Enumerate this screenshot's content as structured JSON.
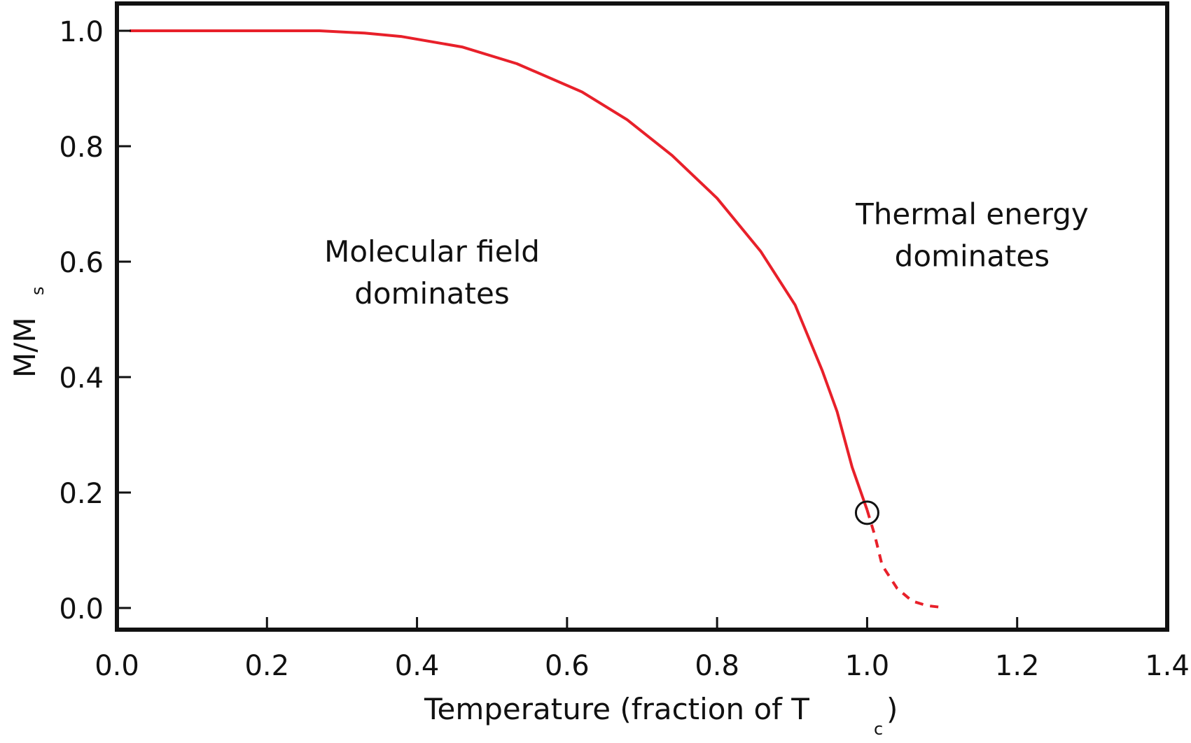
{
  "chart_data": {
    "type": "line",
    "title": "",
    "xlabel": "Temperature (fraction of T",
    "xlabel_sub": "c",
    "xlabel_close": ")",
    "ylabel": "M/M",
    "ylabel_sub": "s",
    "xlim": [
      0.0,
      1.4
    ],
    "ylim": [
      0.0,
      1.0
    ],
    "xticks": [
      "0.0",
      "0.2",
      "0.4",
      "0.6",
      "0.8",
      "1.0",
      "1.2",
      "1.4"
    ],
    "yticks": [
      "0.0",
      "0.2",
      "0.4",
      "0.6",
      "0.8",
      "1.0"
    ],
    "grid": false,
    "series": [
      {
        "style": "solid",
        "color": "#e8202a",
        "x": [
          0.017,
          0.137,
          0.27,
          0.33,
          0.38,
          0.46,
          0.533,
          0.62,
          0.68,
          0.74,
          0.8,
          0.858,
          0.904,
          0.94,
          0.96,
          0.98,
          1.0
        ],
        "y": [
          1.0,
          1.0,
          1.0,
          0.996,
          0.99,
          0.972,
          0.943,
          0.894,
          0.846,
          0.784,
          0.71,
          0.618,
          0.525,
          0.412,
          0.34,
          0.244,
          0.17
        ]
      },
      {
        "style": "dashed",
        "color": "#e8202a",
        "x": [
          1.0,
          1.01,
          1.02,
          1.04,
          1.06,
          1.08,
          1.1
        ],
        "y": [
          0.17,
          0.127,
          0.074,
          0.034,
          0.012,
          0.004,
          0.001
        ]
      }
    ],
    "markers": [
      {
        "shape": "open-circle",
        "color": "#111111",
        "x": 1.0,
        "y": 0.165
      }
    ],
    "annotations": [
      {
        "lines": [
          "Molecular field",
          "dominates"
        ],
        "x": 0.42,
        "y": 0.6
      },
      {
        "lines": [
          "Thermal energy",
          "dominates"
        ],
        "x": 1.14,
        "y": 0.665
      }
    ]
  }
}
